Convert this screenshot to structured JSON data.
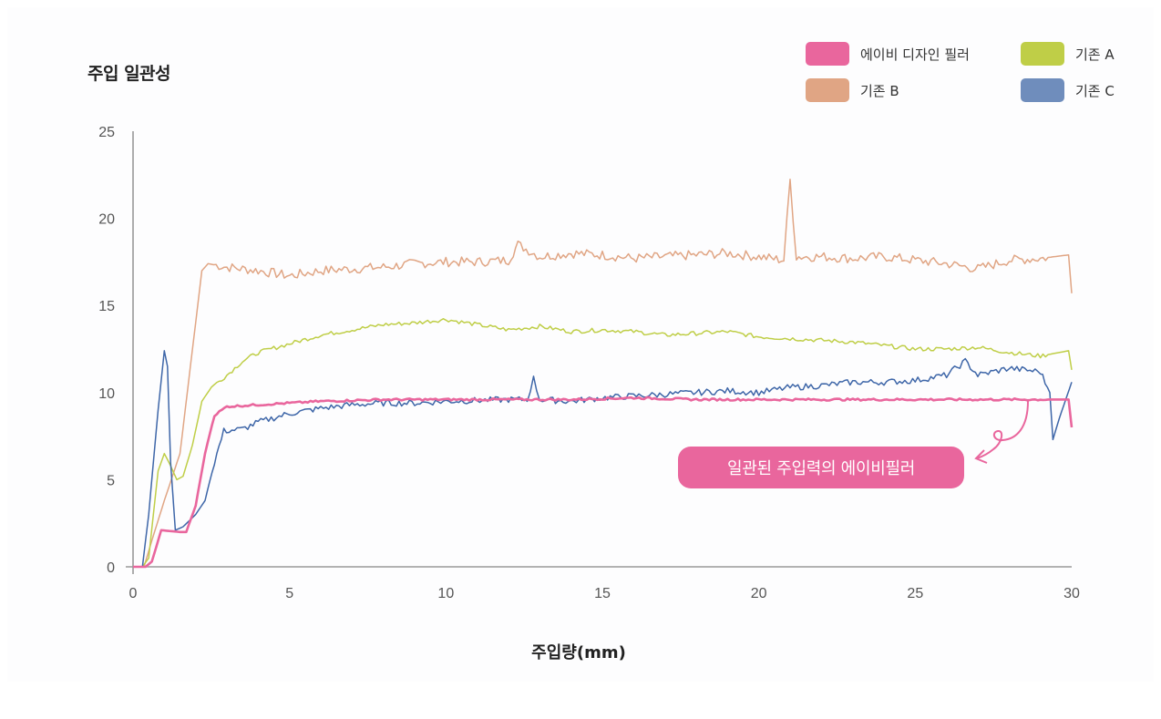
{
  "title": "주입 일관성",
  "legend": [
    {
      "label": "에이비 디자인 필러",
      "color": "#e9669d"
    },
    {
      "label": "기존 A",
      "color": "#bfce47"
    },
    {
      "label": "기존 B",
      "color": "#e0a584"
    },
    {
      "label": "기존 C",
      "color": "#6f8dbc"
    }
  ],
  "annotation": "일관된 주입력의 에이비필러",
  "chart_data": {
    "type": "line",
    "title": "주입 일관성",
    "xlabel": "주입량(mm)",
    "ylabel": "",
    "xlim": [
      0,
      30
    ],
    "ylim": [
      0,
      25
    ],
    "xticks": [
      0,
      5,
      10,
      15,
      20,
      25,
      30
    ],
    "yticks": [
      0,
      5,
      10,
      15,
      20,
      25
    ],
    "grid": false,
    "legend_position": "top-right",
    "annotations": [
      {
        "text": "일관된 주입력의 에이비필러",
        "points_to": "에이비 디자인 필러",
        "x": 28.5,
        "y": 9.6
      }
    ],
    "series": [
      {
        "name": "에이비 디자인 필러",
        "color": "#e9669d",
        "x": [
          0,
          0.4,
          0.6,
          0.9,
          1.5,
          1.7,
          2.0,
          2.3,
          2.6,
          3.0,
          4.0,
          5.0,
          6.0,
          8.0,
          10.0,
          12.0,
          14.0,
          16.0,
          18.0,
          20.0,
          22.0,
          24.0,
          26.0,
          28.0,
          29.5,
          29.9,
          30.0
        ],
        "y": [
          0,
          0,
          0.3,
          2.1,
          2.0,
          2.0,
          3.5,
          6.5,
          8.7,
          9.2,
          9.3,
          9.4,
          9.5,
          9.6,
          9.6,
          9.6,
          9.6,
          9.7,
          9.6,
          9.6,
          9.6,
          9.6,
          9.6,
          9.6,
          9.6,
          9.6,
          8.0
        ]
      },
      {
        "name": "기존 A",
        "color": "#bfce47",
        "x": [
          0,
          0.3,
          0.5,
          0.8,
          1.0,
          1.2,
          1.4,
          1.6,
          1.9,
          2.2,
          2.5,
          3.0,
          3.5,
          4.0,
          5.0,
          6.0,
          7.0,
          8.0,
          9.0,
          10.0,
          11.0,
          12.0,
          13.0,
          14.0,
          15.0,
          16.0,
          17.0,
          18.0,
          19.0,
          20.0,
          21.0,
          22.0,
          23.0,
          24.0,
          25.0,
          26.0,
          27.0,
          28.0,
          29.0,
          29.9,
          30.0
        ],
        "y": [
          0,
          0,
          0.5,
          5.5,
          6.5,
          5.8,
          5.0,
          5.2,
          7.0,
          9.5,
          10.3,
          11.0,
          11.8,
          12.3,
          12.8,
          13.3,
          13.6,
          13.9,
          14.0,
          14.2,
          13.9,
          13.6,
          13.8,
          13.5,
          13.6,
          13.5,
          13.3,
          13.4,
          13.5,
          13.2,
          13.1,
          13.0,
          12.9,
          12.7,
          12.5,
          12.5,
          12.6,
          12.3,
          12.1,
          12.4,
          11.3
        ]
      },
      {
        "name": "기존 B",
        "color": "#e0a584",
        "x": [
          0,
          0.35,
          0.6,
          1.0,
          1.5,
          2.0,
          2.2,
          2.4,
          3.0,
          4.0,
          5.0,
          6.0,
          7.0,
          8.0,
          9.0,
          10.0,
          11.0,
          12.0,
          12.3,
          13.0,
          14.0,
          15.0,
          16.0,
          17.0,
          18.0,
          19.0,
          20.0,
          20.8,
          21.0,
          21.2,
          22.0,
          23.0,
          24.0,
          25.0,
          26.0,
          27.0,
          28.0,
          29.0,
          29.9,
          30.0
        ],
        "y": [
          0,
          0,
          1.5,
          3.8,
          6.5,
          14.0,
          17.0,
          17.4,
          17.2,
          17.0,
          16.7,
          17.0,
          17.1,
          17.2,
          17.4,
          17.5,
          17.5,
          17.6,
          18.5,
          17.8,
          18.0,
          17.9,
          17.7,
          17.8,
          17.9,
          18.0,
          17.8,
          17.6,
          22.2,
          17.8,
          17.8,
          17.7,
          17.8,
          17.6,
          17.4,
          17.1,
          17.6,
          17.7,
          17.9,
          15.7
        ]
      },
      {
        "name": "기존 C",
        "color": "#6f8dbc",
        "x": [
          0,
          0.3,
          0.5,
          0.8,
          1.0,
          1.1,
          1.2,
          1.35,
          1.6,
          2.0,
          2.3,
          2.6,
          2.9,
          3.5,
          4.0,
          5.0,
          6.0,
          7.0,
          8.0,
          9.0,
          10.0,
          12.0,
          12.6,
          12.8,
          13.0,
          14.0,
          15.0,
          16.0,
          17.0,
          18.0,
          19.0,
          20.0,
          21.0,
          22.0,
          23.0,
          24.0,
          25.0,
          26.0,
          26.6,
          27.0,
          28.0,
          29.0,
          29.3,
          29.4,
          29.6,
          30.0
        ],
        "y": [
          0,
          0,
          3.0,
          9.0,
          12.4,
          11.5,
          6.0,
          2.1,
          2.3,
          3.0,
          3.8,
          6.0,
          7.8,
          7.9,
          8.3,
          8.8,
          9.1,
          9.3,
          9.4,
          9.4,
          9.5,
          9.6,
          9.6,
          10.8,
          9.6,
          9.5,
          9.7,
          9.8,
          9.9,
          10.0,
          10.1,
          10.0,
          10.3,
          10.4,
          10.6,
          10.6,
          10.7,
          11.0,
          11.8,
          11.0,
          11.4,
          11.2,
          10.0,
          7.3,
          8.5,
          10.6
        ]
      }
    ]
  }
}
